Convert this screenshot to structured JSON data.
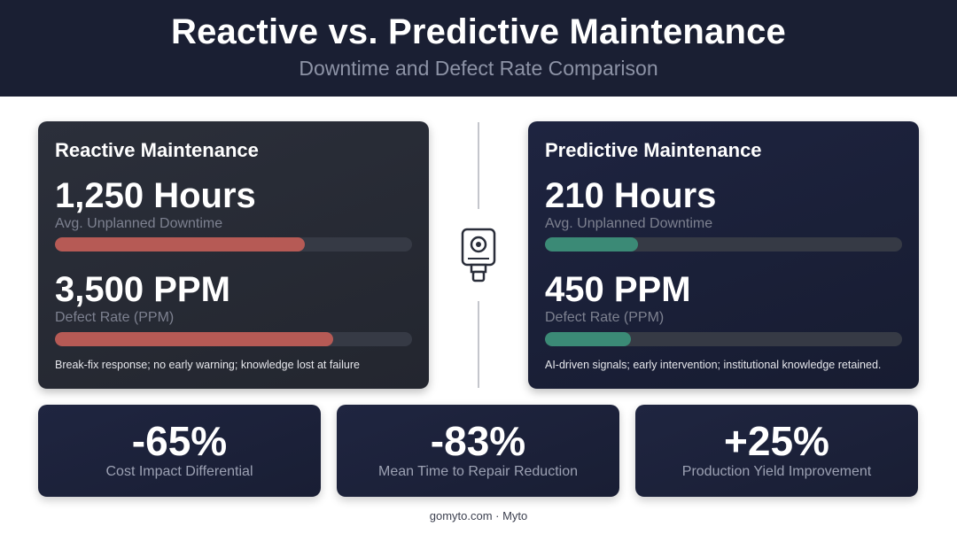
{
  "header": {
    "title": "Reactive vs. Predictive Maintenance",
    "subtitle": "Downtime and Defect Rate Comparison"
  },
  "reactive": {
    "title": "Reactive Maintenance",
    "downtime_value": "1,250 Hours",
    "downtime_label": "Avg. Unplanned Downtime",
    "downtime_bar_fraction": 0.7,
    "defect_value": "3,500 PPM",
    "defect_label": "Defect Rate (PPM)",
    "defect_bar_fraction": 0.78,
    "bar_color": "#b65a55",
    "note": "Break-fix response; no early warning; knowledge lost at failure"
  },
  "predictive": {
    "title": "Predictive Maintenance",
    "downtime_value": "210 Hours",
    "downtime_label": "Avg. Unplanned Downtime",
    "downtime_bar_fraction": 0.26,
    "defect_value": "450 PPM",
    "defect_label": "Defect Rate (PPM)",
    "defect_bar_fraction": 0.24,
    "bar_color": "#3b8a76",
    "note": "AI-driven signals; early intervention; institutional knowledge retained."
  },
  "center_icon": "sensor-icon",
  "stats": [
    {
      "value": "-65%",
      "label": "Cost Impact Differential"
    },
    {
      "value": "-83%",
      "label": "Mean Time to Repair Reduction"
    },
    {
      "value": "+25%",
      "label": "Production Yield Improvement"
    }
  ],
  "footer": "gomyto.com · Myto"
}
